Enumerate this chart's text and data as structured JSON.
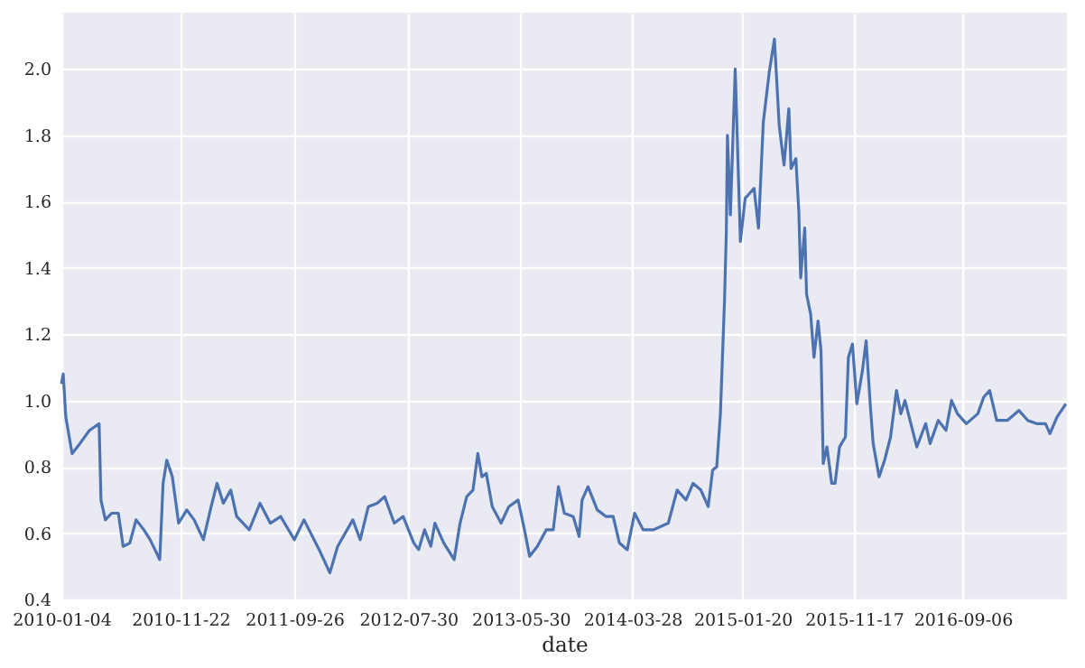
{
  "chart_data": {
    "type": "line",
    "xlabel": "date",
    "grid": true,
    "xlim": [
      "2010-01-04",
      "2017-06-15"
    ],
    "xticks": [
      "2010-01-04",
      "2010-11-22",
      "2011-09-26",
      "2012-07-30",
      "2013-05-30",
      "2014-03-28",
      "2015-01-20",
      "2015-11-17",
      "2016-09-06"
    ],
    "ylim": [
      0.4,
      2.17
    ],
    "yticks": [
      {
        "value": 0.4,
        "label": "0.4"
      },
      {
        "value": 0.6,
        "label": "0.6"
      },
      {
        "value": 0.8,
        "label": "0.8"
      },
      {
        "value": 1.0,
        "label": "1.0"
      },
      {
        "value": 1.2,
        "label": "1.2"
      },
      {
        "value": 1.4,
        "label": "1.4"
      },
      {
        "value": 1.6,
        "label": "1.6"
      },
      {
        "value": 1.8,
        "label": "1.8"
      },
      {
        "value": 2.0,
        "label": "2.0"
      }
    ],
    "x": [
      "2010-01-04",
      "2010-01-09",
      "2010-01-16",
      "2010-02-02",
      "2010-02-23",
      "2010-03-21",
      "2010-04-16",
      "2010-04-21",
      "2010-05-03",
      "2010-05-20",
      "2010-06-07",
      "2010-06-20",
      "2010-07-08",
      "2010-07-25",
      "2010-08-15",
      "2010-09-01",
      "2010-09-27",
      "2010-10-06",
      "2010-10-16",
      "2010-10-31",
      "2010-11-17",
      "2010-12-09",
      "2010-12-29",
      "2011-01-23",
      "2011-02-13",
      "2011-03-01",
      "2011-03-18",
      "2011-04-07",
      "2011-04-23",
      "2011-05-27",
      "2011-06-25",
      "2011-07-23",
      "2011-08-20",
      "2011-09-26",
      "2011-10-22",
      "2011-12-02",
      "2011-12-31",
      "2012-01-21",
      "2012-03-02",
      "2012-03-22",
      "2012-04-13",
      "2012-05-07",
      "2012-05-27",
      "2012-06-22",
      "2012-07-16",
      "2012-08-14",
      "2012-08-27",
      "2012-09-12",
      "2012-09-29",
      "2012-10-10",
      "2012-11-03",
      "2012-12-01",
      "2012-12-17",
      "2013-01-04",
      "2013-01-21",
      "2013-02-03",
      "2013-02-14",
      "2013-02-26",
      "2013-03-14",
      "2013-04-07",
      "2013-04-28",
      "2013-05-23",
      "2013-06-11",
      "2013-06-23",
      "2013-07-14",
      "2013-08-07",
      "2013-08-26",
      "2013-09-09",
      "2013-09-25",
      "2013-10-19",
      "2013-11-04",
      "2013-11-12",
      "2013-11-28",
      "2013-12-23",
      "2014-01-16",
      "2014-02-04",
      "2014-02-21",
      "2014-03-14",
      "2014-04-03",
      "2014-04-26",
      "2014-05-24",
      "2014-07-03",
      "2014-07-27",
      "2014-08-20",
      "2014-09-08",
      "2014-09-29",
      "2014-10-19",
      "2014-10-31",
      "2014-11-11",
      "2014-11-21",
      "2014-12-02",
      "2014-12-07",
      "2014-12-10",
      "2014-12-18",
      "2014-12-31",
      "2015-01-14",
      "2015-01-27",
      "2015-02-04",
      "2015-02-20",
      "2015-03-04",
      "2015-03-17",
      "2015-04-02",
      "2015-04-16",
      "2015-04-29",
      "2015-05-12",
      "2015-05-25",
      "2015-05-31",
      "2015-06-13",
      "2015-06-21",
      "2015-06-26",
      "2015-07-07",
      "2015-07-12",
      "2015-07-23",
      "2015-08-01",
      "2015-08-12",
      "2015-08-20",
      "2015-08-26",
      "2015-09-05",
      "2015-09-18",
      "2015-09-27",
      "2015-10-09",
      "2015-10-25",
      "2015-11-02",
      "2015-11-13",
      "2015-11-25",
      "2015-12-10",
      "2015-12-20",
      "2015-12-31",
      "2016-01-08",
      "2016-01-24",
      "2016-02-08",
      "2016-02-24",
      "2016-03-11",
      "2016-03-23",
      "2016-04-03",
      "2016-04-19",
      "2016-05-05",
      "2016-05-29",
      "2016-06-10",
      "2016-07-02",
      "2016-07-23",
      "2016-08-07",
      "2016-08-23",
      "2016-09-16",
      "2016-10-17",
      "2016-11-02",
      "2016-11-18",
      "2016-12-07",
      "2017-01-05",
      "2017-02-05",
      "2017-03-01",
      "2017-03-25",
      "2017-04-18",
      "2017-04-30",
      "2017-05-19",
      "2017-06-12"
    ],
    "series": [
      {
        "color": "#4c72b0",
        "values": [
          1.05,
          1.08,
          0.95,
          0.84,
          0.87,
          0.91,
          0.93,
          0.7,
          0.64,
          0.66,
          0.66,
          0.56,
          0.57,
          0.64,
          0.61,
          0.58,
          0.52,
          0.75,
          0.82,
          0.77,
          0.63,
          0.67,
          0.64,
          0.58,
          0.68,
          0.75,
          0.69,
          0.73,
          0.65,
          0.61,
          0.69,
          0.63,
          0.65,
          0.58,
          0.64,
          0.55,
          0.48,
          0.56,
          0.64,
          0.58,
          0.68,
          0.69,
          0.71,
          0.63,
          0.65,
          0.57,
          0.55,
          0.61,
          0.56,
          0.63,
          0.57,
          0.52,
          0.63,
          0.71,
          0.73,
          0.84,
          0.77,
          0.78,
          0.68,
          0.63,
          0.68,
          0.7,
          0.6,
          0.53,
          0.56,
          0.61,
          0.61,
          0.74,
          0.66,
          0.65,
          0.59,
          0.7,
          0.74,
          0.67,
          0.65,
          0.65,
          0.57,
          0.55,
          0.66,
          0.61,
          0.61,
          0.63,
          0.73,
          0.7,
          0.75,
          0.73,
          0.68,
          0.79,
          0.8,
          0.96,
          1.3,
          1.51,
          1.8,
          1.56,
          2.0,
          1.48,
          1.61,
          1.62,
          1.64,
          1.52,
          1.84,
          1.99,
          2.09,
          1.83,
          1.71,
          1.88,
          1.7,
          1.73,
          1.57,
          1.37,
          1.52,
          1.32,
          1.26,
          1.13,
          1.24,
          1.15,
          0.81,
          0.86,
          0.75,
          0.75,
          0.86,
          0.89,
          1.13,
          1.17,
          0.99,
          1.09,
          1.18,
          0.99,
          0.87,
          0.77,
          0.82,
          0.89,
          1.03,
          0.96,
          1.0,
          0.93,
          0.86,
          0.93,
          0.87,
          0.94,
          0.91,
          1.0,
          0.96,
          0.93,
          0.96,
          1.01,
          1.03,
          0.94,
          0.94,
          0.97,
          0.94,
          0.93,
          0.93,
          0.9,
          0.95,
          0.99
        ]
      }
    ]
  }
}
